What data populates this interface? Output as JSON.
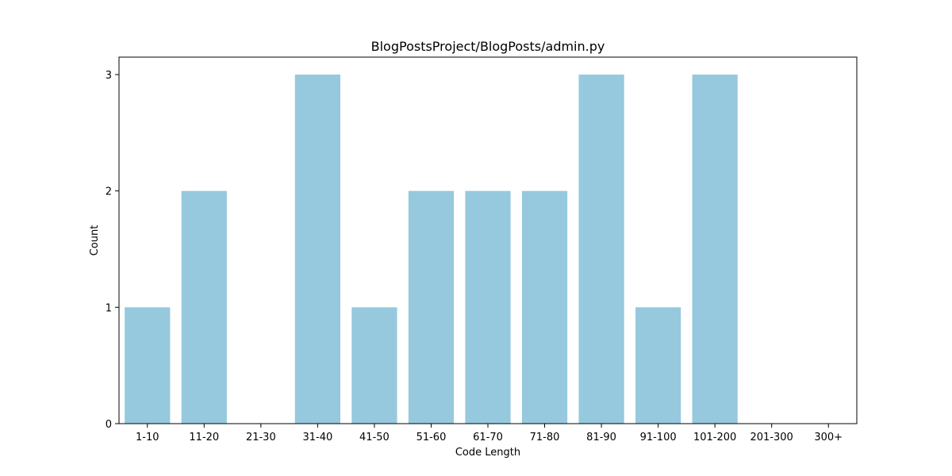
{
  "chart_data": {
    "type": "bar",
    "title": "BlogPostsProject/BlogPosts/admin.py",
    "xlabel": "Code Length",
    "ylabel": "Count",
    "categories": [
      "1-10",
      "11-20",
      "21-30",
      "31-40",
      "41-50",
      "51-60",
      "61-70",
      "71-80",
      "81-90",
      "91-100",
      "101-200",
      "201-300",
      "300+"
    ],
    "values": [
      1,
      2,
      0,
      3,
      1,
      2,
      2,
      2,
      3,
      1,
      3,
      0,
      0
    ],
    "ylim": [
      0,
      3.15
    ],
    "yticks": [
      "0",
      "1",
      "2",
      "3"
    ],
    "bar_color": "#96c9de",
    "grid": false,
    "legend": "none"
  }
}
